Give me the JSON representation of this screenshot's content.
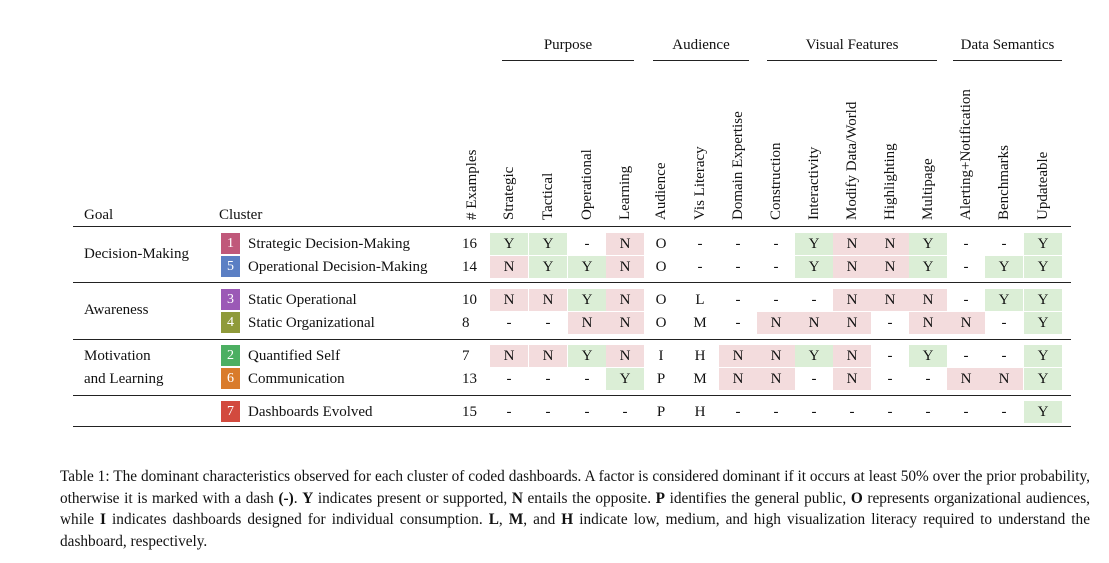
{
  "groups": [
    {
      "label": "Purpose"
    },
    {
      "label": "Audience"
    },
    {
      "label": "Visual Features"
    },
    {
      "label": "Data Semantics"
    }
  ],
  "headers": {
    "goal": "Goal",
    "cluster": "Cluster",
    "examples": "# Examples",
    "columns": [
      "Strategic",
      "Tactical",
      "Operational",
      "Learning",
      "Audience",
      "Vis Literacy",
      "Domain Expertise",
      "Construction",
      "Interactivity",
      "Modify Data/World",
      "Highlighting",
      "Multipage",
      "Alerting+Notification",
      "Benchmarks",
      "Updateable"
    ]
  },
  "goals": [
    {
      "label": "Decision-Making"
    },
    {
      "label": "Awareness"
    },
    {
      "label": "Motivation"
    },
    {
      "label": "and Learning"
    }
  ],
  "rows": [
    {
      "num": "1",
      "color": "#c0587a",
      "name": "Strategic Decision-Making",
      "examples": "16",
      "values": [
        "Y",
        "Y",
        "-",
        "N",
        "O",
        "-",
        "-",
        "-",
        "Y",
        "N",
        "N",
        "Y",
        "-",
        "-",
        "Y"
      ]
    },
    {
      "num": "5",
      "color": "#5b7fc4",
      "name": "Operational Decision-Making",
      "examples": "14",
      "values": [
        "N",
        "Y",
        "Y",
        "N",
        "O",
        "-",
        "-",
        "-",
        "Y",
        "N",
        "N",
        "Y",
        "-",
        "Y",
        "Y"
      ]
    },
    {
      "num": "3",
      "color": "#9b59b6",
      "name": "Static Operational",
      "examples": "10",
      "values": [
        "N",
        "N",
        "Y",
        "N",
        "O",
        "L",
        "-",
        "-",
        "-",
        "N",
        "N",
        "N",
        "-",
        "Y",
        "Y"
      ]
    },
    {
      "num": "4",
      "color": "#8f9a3a",
      "name": "Static Organizational",
      "examples": "8",
      "values": [
        "-",
        "-",
        "N",
        "N",
        "O",
        "M",
        "-",
        "N",
        "N",
        "N",
        "-",
        "N",
        "N",
        "-",
        "Y"
      ]
    },
    {
      "num": "2",
      "color": "#4caf62",
      "name": "Quantified Self",
      "examples": "7",
      "values": [
        "N",
        "N",
        "Y",
        "N",
        "I",
        "H",
        "N",
        "N",
        "Y",
        "N",
        "-",
        "Y",
        "-",
        "-",
        "Y"
      ]
    },
    {
      "num": "6",
      "color": "#d97b2b",
      "name": "Communication",
      "examples": "13",
      "values": [
        "-",
        "-",
        "-",
        "Y",
        "P",
        "M",
        "N",
        "N",
        "-",
        "N",
        "-",
        "-",
        "N",
        "N",
        "Y"
      ]
    },
    {
      "num": "7",
      "color": "#d24a3e",
      "name": "Dashboards Evolved",
      "examples": "15",
      "values": [
        "-",
        "-",
        "-",
        "-",
        "P",
        "H",
        "-",
        "-",
        "-",
        "-",
        "-",
        "-",
        "-",
        "-",
        "Y"
      ]
    }
  ],
  "shading": {
    "Y": "#dbeed6",
    "N": "#f3dcdd"
  },
  "caption": {
    "p1": "Table 1: The dominant characteristics observed for each cluster of coded dashboards. A factor is considered dominant if it occurs at least 50% over the prior probability, otherwise it is marked with a dash ",
    "dash": "(-)",
    "p2": ". ",
    "Y": "Y",
    "p3": " indicates present or supported, ",
    "N": "N",
    "p4": " entails the opposite. ",
    "P": "P",
    "p5": " identifies the general public, ",
    "O": "O",
    "p6": " represents organizational audiences, while ",
    "I": "I",
    "p7": " indicates dashboards designed for individual consumption. ",
    "L": "L",
    "p8": ", ",
    "M": "M",
    "p9": ", and ",
    "H": "H",
    "p10": " indicate low, medium, and high visualization literacy required to understand the dashboard, respectively."
  }
}
